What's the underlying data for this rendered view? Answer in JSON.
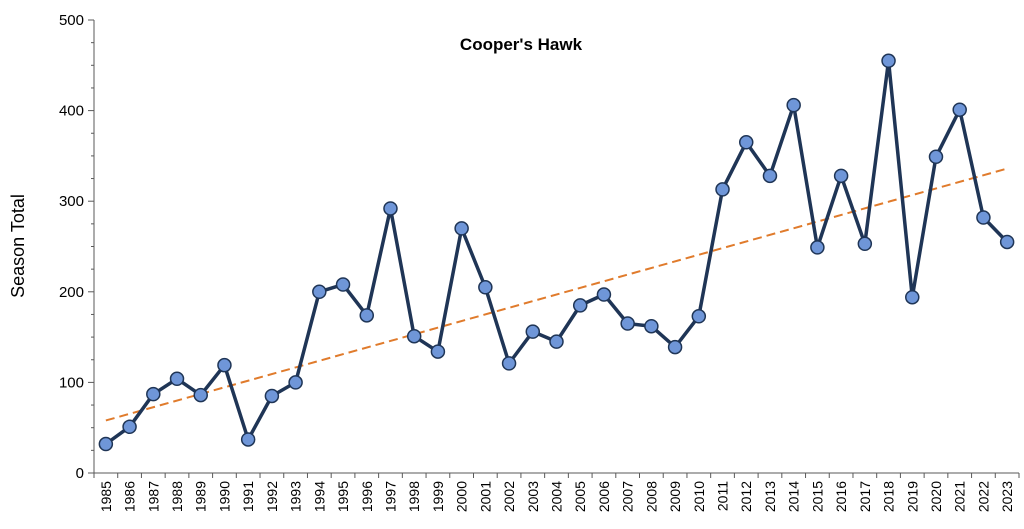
{
  "chart_data": {
    "type": "line",
    "title": "Cooper's Hawk",
    "xlabel": "",
    "ylabel": "Season Total",
    "ylim": [
      0,
      500
    ],
    "yticks": [
      "0",
      "100",
      "200",
      "300",
      "400",
      "500"
    ],
    "grid": false,
    "categories": [
      "1985",
      "1986",
      "1987",
      "1988",
      "1989",
      "1990",
      "1991",
      "1992",
      "1993",
      "1994",
      "1995",
      "1996",
      "1997",
      "1998",
      "1999",
      "2000",
      "2001",
      "2002",
      "2003",
      "2004",
      "2005",
      "2006",
      "2007",
      "2008",
      "2009",
      "2010",
      "2011",
      "2012",
      "2013",
      "2014",
      "2015",
      "2016",
      "2017",
      "2018",
      "2019",
      "2020",
      "2021",
      "2022",
      "2023"
    ],
    "series": [
      {
        "values": [
          32,
          51,
          87,
          104,
          86,
          119,
          37,
          85,
          100,
          200,
          208,
          174,
          292,
          151,
          134,
          270,
          205,
          121,
          156,
          145,
          185,
          197,
          165,
          162,
          139,
          173,
          313,
          365,
          328,
          406,
          249,
          328,
          253,
          455,
          194,
          349,
          401,
          282,
          255
        ],
        "line_color": "#1f3556",
        "marker_color": "#6f96d8"
      }
    ],
    "trendline": {
      "start": 58,
      "end": 336,
      "color": "#e07b2c",
      "style": "dashed"
    }
  }
}
